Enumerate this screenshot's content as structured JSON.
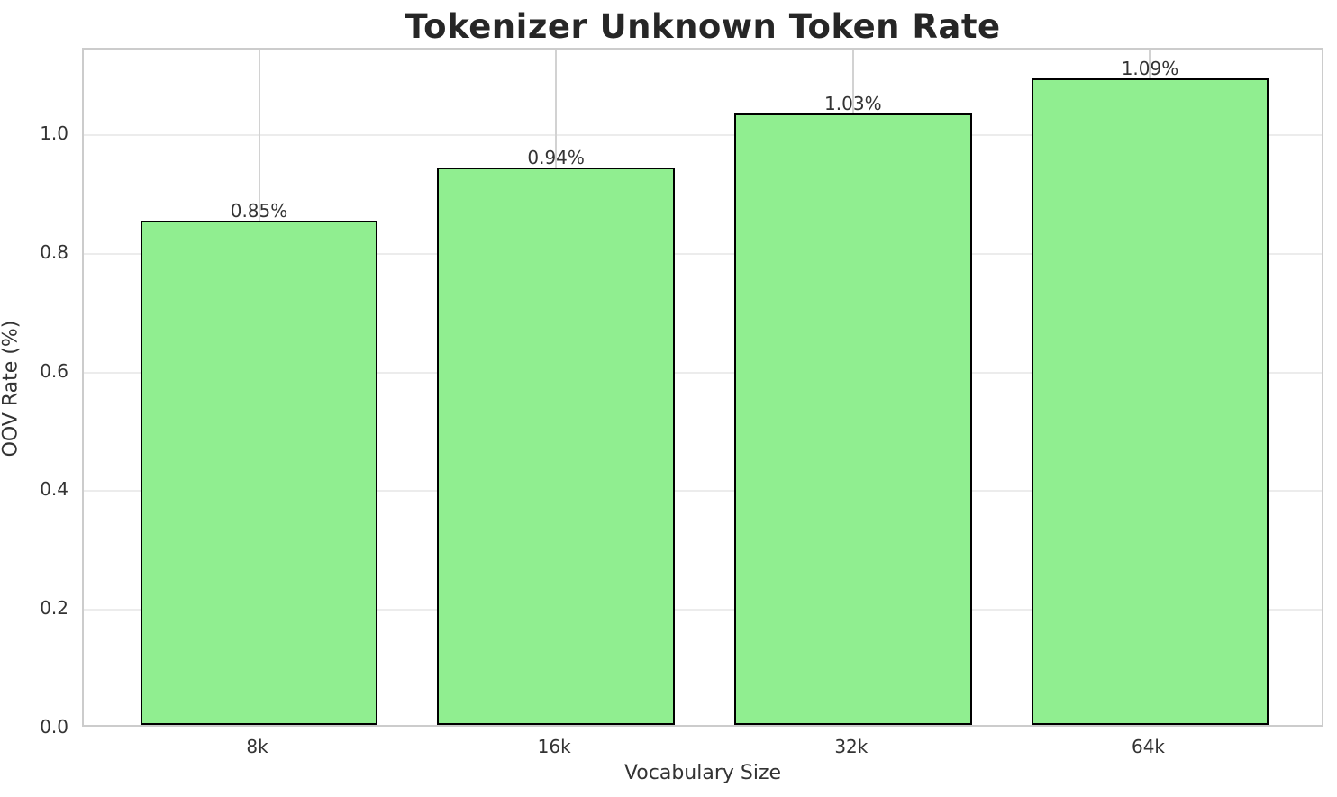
{
  "chart_data": {
    "type": "bar",
    "title": "Tokenizer Unknown Token Rate",
    "xlabel": "Vocabulary Size",
    "ylabel": "OOV Rate (%)",
    "categories": [
      "8k",
      "16k",
      "32k",
      "64k"
    ],
    "values": [
      0.85,
      0.94,
      1.03,
      1.09
    ],
    "value_labels": [
      "0.85%",
      "0.94%",
      "1.03%",
      "1.09%"
    ],
    "ytick_values": [
      0.0,
      0.2,
      0.4,
      0.6,
      0.8,
      1.0
    ],
    "ytick_labels": [
      "0.0",
      "0.2",
      "0.4",
      "0.6",
      "0.8",
      "1.0"
    ],
    "ylim": [
      0,
      1.1445
    ],
    "xlim": [
      -0.59,
      3.59
    ],
    "bar_width": 0.8,
    "grid": true,
    "legend_position": "none",
    "colors": {
      "bar_fill": "#90EE90",
      "bar_edge": "#000000",
      "grid_horizontal": "#ececec",
      "grid_vertical": "#d2d2d2",
      "spine": "#cccccc",
      "text": "#333333",
      "background": "#ffffff"
    }
  }
}
